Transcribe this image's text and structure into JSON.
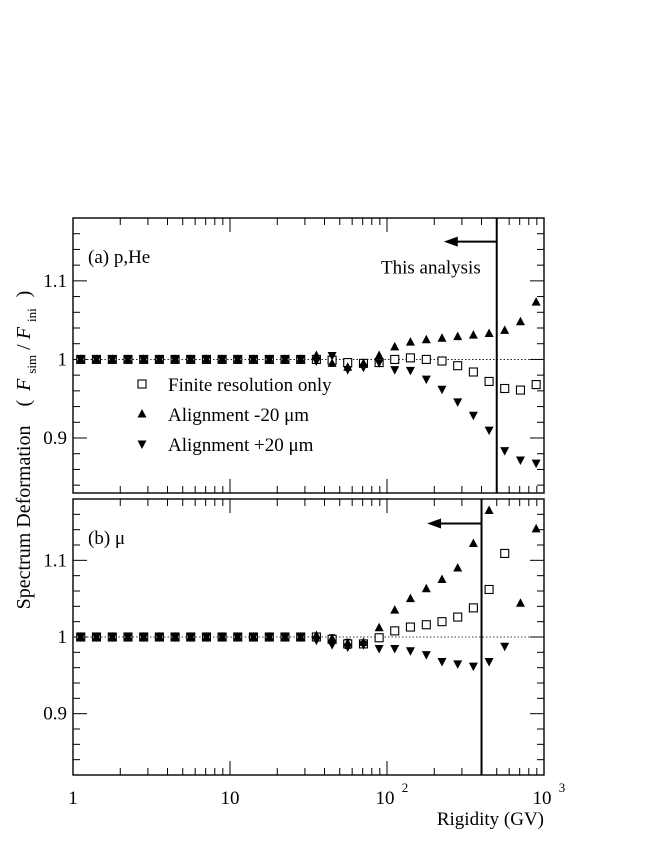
{
  "y_axis_title": {
    "prefix": "Spectrum Deformation",
    "open": "(",
    "f1": "F",
    "sub1": "sim",
    "slash": "/",
    "f2": "F",
    "sub2": "ini",
    "close": ")"
  },
  "x_axis_title": "Rigidity (GV)",
  "x_ticks": [
    {
      "value": 1,
      "base": "1",
      "exp": ""
    },
    {
      "value": 10,
      "base": "10",
      "exp": ""
    },
    {
      "value": 100,
      "base": "10",
      "exp": "2"
    },
    {
      "value": 1000,
      "base": "10",
      "exp": "3"
    }
  ],
  "colors": {
    "ink": "#000000",
    "background": "#ffffff"
  },
  "chart_data": [
    {
      "type": "scatter",
      "panel_label": "(a) p,He",
      "x_scale": "log",
      "xlim": [
        1,
        1000
      ],
      "ylim": [
        0.83,
        1.18
      ],
      "y_ticks": [
        {
          "value": 0.9,
          "label": "0.9"
        },
        {
          "value": 1.0,
          "label": "1"
        },
        {
          "value": 1.1,
          "label": "1.1"
        }
      ],
      "reference_line": 1.0,
      "cut": {
        "x": 500,
        "label": "This analysis",
        "arrow_from_x": 500,
        "arrow_to_x": 230,
        "arrow_y": 1.15
      },
      "legend": {
        "placement": "middle-left"
      },
      "series": [
        {
          "name": "Finite resolution only",
          "marker": "open-square",
          "x": [
            1.12,
            1.41,
            1.78,
            2.24,
            2.82,
            3.55,
            4.47,
            5.62,
            7.08,
            8.91,
            11.2,
            14.1,
            17.8,
            22.4,
            28.2,
            35.5,
            44.7,
            56.2,
            70.8,
            89.1,
            112,
            141,
            178,
            224,
            282,
            355,
            447,
            562,
            708,
            891
          ],
          "y": [
            1.0,
            1.0,
            1.0,
            1.0,
            1.0,
            1.0,
            1.0,
            1.0,
            1.0,
            1.0,
            1.0,
            1.0,
            1.0,
            1.0,
            1.0,
            1.0,
            0.999,
            0.996,
            0.995,
            0.996,
            1.0,
            1.002,
            1.0,
            0.998,
            0.992,
            0.984,
            0.972,
            0.963,
            0.961,
            0.968
          ],
          "err": [
            0.003,
            0.003,
            0.003,
            0.003,
            0.003,
            0.003,
            0.003,
            0.003,
            0.003,
            0.003,
            0.003,
            0.003,
            0.003,
            0.003,
            0.003,
            0.005,
            0.006,
            0.005,
            0.004,
            0.004,
            0.004,
            0.004,
            0.003,
            0.003,
            0.003,
            0.003,
            0.003,
            0.003,
            0.003,
            0.003
          ]
        },
        {
          "name": "Alignment -20 μm",
          "marker": "filled-triangle-up",
          "x": [
            1.12,
            1.41,
            1.78,
            2.24,
            2.82,
            3.55,
            4.47,
            5.62,
            7.08,
            8.91,
            11.2,
            14.1,
            17.8,
            22.4,
            28.2,
            35.5,
            44.7,
            56.2,
            70.8,
            89.1,
            112,
            141,
            178,
            224,
            282,
            355,
            447,
            562,
            708,
            891
          ],
          "y": [
            1.0,
            1.0,
            1.0,
            1.0,
            1.0,
            1.0,
            1.0,
            1.0,
            1.0,
            1.0,
            1.0,
            1.0,
            1.0,
            1.0,
            1.0,
            1.005,
            0.995,
            0.99,
            0.995,
            1.005,
            1.016,
            1.022,
            1.025,
            1.027,
            1.029,
            1.031,
            1.033,
            1.037,
            1.048,
            1.073
          ]
        },
        {
          "name": "Alignment +20 μm",
          "marker": "filled-triangle-down",
          "x": [
            1.12,
            1.41,
            1.78,
            2.24,
            2.82,
            3.55,
            4.47,
            5.62,
            7.08,
            8.91,
            11.2,
            14.1,
            17.8,
            22.4,
            28.2,
            35.5,
            44.7,
            56.2,
            70.8,
            89.1,
            112,
            141,
            178,
            224,
            282,
            355,
            447,
            562,
            708,
            891
          ],
          "y": [
            1.0,
            1.0,
            1.0,
            1.0,
            1.0,
            1.0,
            1.0,
            1.0,
            1.0,
            1.0,
            1.0,
            1.0,
            1.0,
            1.0,
            1.0,
            0.998,
            1.005,
            0.987,
            0.99,
            0.996,
            0.987,
            0.986,
            0.975,
            0.962,
            0.946,
            0.929,
            0.91,
            0.884,
            0.872,
            0.868
          ]
        }
      ]
    },
    {
      "type": "scatter",
      "panel_label": "(b) μ",
      "x_scale": "log",
      "xlim": [
        1,
        1000
      ],
      "ylim": [
        0.82,
        1.18
      ],
      "y_ticks": [
        {
          "value": 0.9,
          "label": "0.9"
        },
        {
          "value": 1.0,
          "label": "1"
        },
        {
          "value": 1.1,
          "label": "1.1"
        }
      ],
      "reference_line": 1.0,
      "cut": {
        "x": 400,
        "arrow_from_x": 400,
        "arrow_to_x": 180,
        "arrow_y": 1.148
      },
      "series": [
        {
          "name": "Finite resolution only",
          "marker": "open-square",
          "x": [
            1.12,
            1.41,
            1.78,
            2.24,
            2.82,
            3.55,
            4.47,
            5.62,
            7.08,
            8.91,
            11.2,
            14.1,
            17.8,
            22.4,
            28.2,
            35.5,
            44.7,
            56.2,
            70.8,
            89.1,
            112,
            141,
            178,
            224,
            282,
            355,
            447,
            562,
            708,
            891
          ],
          "y": [
            1.0,
            1.0,
            1.0,
            1.0,
            1.0,
            1.0,
            1.0,
            1.0,
            1.0,
            1.0,
            1.0,
            1.0,
            1.0,
            1.0,
            1.0,
            1.0,
            0.997,
            0.991,
            0.991,
            0.999,
            1.008,
            1.013,
            1.016,
            1.02,
            1.026,
            1.038,
            1.062,
            1.109,
            null,
            null
          ],
          "err": [
            0.003,
            0.003,
            0.003,
            0.003,
            0.003,
            0.003,
            0.003,
            0.003,
            0.003,
            0.003,
            0.003,
            0.003,
            0.003,
            0.003,
            0.003,
            0.005,
            0.006,
            0.006,
            0.005,
            0.004,
            0.003,
            0.003,
            0.003,
            0.003,
            0.003,
            0.003,
            0.003,
            0.003,
            0.003,
            0.003
          ]
        },
        {
          "name": "Alignment -20 μm",
          "marker": "filled-triangle-up",
          "x": [
            1.12,
            1.41,
            1.78,
            2.24,
            2.82,
            3.55,
            4.47,
            5.62,
            7.08,
            8.91,
            11.2,
            14.1,
            17.8,
            22.4,
            28.2,
            35.5,
            44.7,
            56.2,
            70.8,
            89.1,
            112,
            141,
            178,
            224,
            282,
            355,
            447,
            562,
            708,
            891
          ],
          "y": [
            1.0,
            1.0,
            1.0,
            1.0,
            1.0,
            1.0,
            1.0,
            1.0,
            1.0,
            1.0,
            1.0,
            1.0,
            1.0,
            1.0,
            1.0,
            1.002,
            0.998,
            0.992,
            0.993,
            1.012,
            1.035,
            1.05,
            1.063,
            1.075,
            1.09,
            1.122,
            1.165,
            null,
            1.044,
            1.141
          ]
        },
        {
          "name": "Alignment +20 μm",
          "marker": "filled-triangle-down",
          "x": [
            1.12,
            1.41,
            1.78,
            2.24,
            2.82,
            3.55,
            4.47,
            5.62,
            7.08,
            8.91,
            11.2,
            14.1,
            17.8,
            22.4,
            28.2,
            35.5,
            44.7,
            56.2,
            70.8,
            89.1,
            112,
            141,
            178,
            224,
            282,
            355,
            447,
            562,
            708,
            891
          ],
          "y": [
            1.0,
            1.0,
            1.0,
            1.0,
            1.0,
            1.0,
            1.0,
            1.0,
            1.0,
            1.0,
            1.0,
            1.0,
            1.0,
            1.0,
            1.0,
            0.996,
            0.99,
            0.987,
            0.99,
            0.985,
            0.985,
            0.982,
            0.977,
            0.968,
            0.965,
            0.962,
            0.968,
            0.988,
            null,
            null
          ]
        }
      ]
    }
  ]
}
